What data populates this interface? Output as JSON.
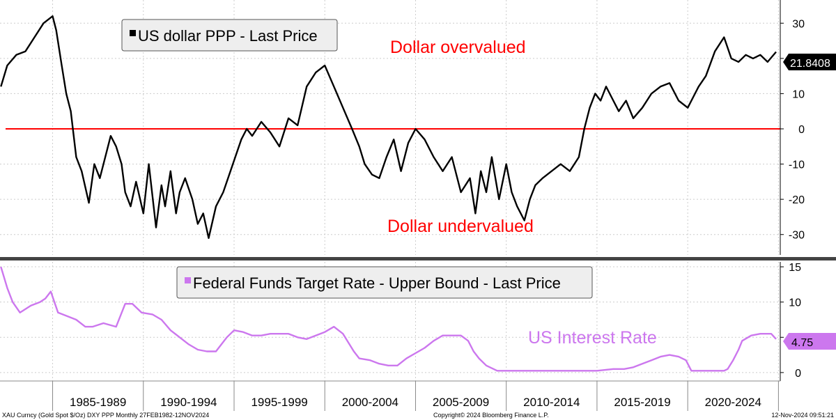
{
  "colors": {
    "ppp_line": "#000000",
    "zero_line": "#ff0000",
    "rate_line": "#cc77ee",
    "annotation_red": "#ff0000",
    "annotation_purple": "#cc77ee",
    "grid": "#cccccc",
    "last_label_bg": "#cc77ee"
  },
  "footer": {
    "left": "XAU Curncy (Gold Spot  $/Oz) DXY PPP  Monthly 27FEB1982-12NOV2024",
    "center": "Copyright© 2024 Bloomberg Finance L.P.",
    "right": "12-Nov-2024 09:51:21"
  },
  "chart_data": [
    {
      "type": "line",
      "panel": "top",
      "title": "US dollar PPP - Last Price",
      "legend": "US dollar PPP - Last Price",
      "annotations": [
        "Dollar overvalued",
        "Dollar undervalued"
      ],
      "last_value_label": "21.8408",
      "ylim": [
        -35,
        35
      ],
      "yticks": [
        30,
        20,
        10,
        0,
        -10,
        -20,
        -30
      ],
      "reference_line": 0,
      "series": [
        {
          "name": "US dollar PPP",
          "x": [
            1982.15,
            1982.5,
            1983.0,
            1983.5,
            1984.0,
            1984.5,
            1985.0,
            1985.2,
            1985.5,
            1985.75,
            1986.0,
            1986.3,
            1986.6,
            1987.0,
            1987.3,
            1987.6,
            1987.9,
            1988.2,
            1988.5,
            1988.8,
            1989.0,
            1989.3,
            1989.6,
            1990.0,
            1990.3,
            1990.7,
            1991.0,
            1991.2,
            1991.5,
            1991.8,
            1992.0,
            1992.3,
            1992.7,
            1993.0,
            1993.3,
            1993.6,
            1994.0,
            1994.4,
            1994.8,
            1995.0,
            1995.2,
            1995.4,
            1995.7,
            1996.0,
            1996.5,
            1997.0,
            1997.5,
            1998.0,
            1998.5,
            1999.0,
            1999.5,
            2000.0,
            2000.5,
            2001.0,
            2001.5,
            2001.9,
            2002.2,
            2002.6,
            2003.0,
            2003.4,
            2003.8,
            2004.2,
            2004.6,
            2005.0,
            2005.5,
            2006.0,
            2006.5,
            2007.0,
            2007.5,
            2008.0,
            2008.3,
            2008.6,
            2008.9,
            2009.2,
            2009.6,
            2010.0,
            2010.3,
            2010.6,
            2011.0,
            2011.3,
            2011.6,
            2012.0,
            2012.5,
            2013.0,
            2013.5,
            2014.0,
            2014.3,
            2014.6,
            2014.9,
            2015.2,
            2015.5,
            2015.8,
            2016.2,
            2016.6,
            2017.0,
            2017.5,
            2018.0,
            2018.5,
            2019.0,
            2019.5,
            2020.0,
            2020.3,
            2020.6,
            2021.0,
            2021.5,
            2022.0,
            2022.4,
            2022.8,
            2023.2,
            2023.6,
            2024.0,
            2024.4,
            2024.87
          ],
          "y": [
            12,
            18,
            21,
            22,
            26,
            30,
            32,
            28,
            18,
            10,
            5,
            -8,
            -12,
            -21,
            -10,
            -14,
            -8,
            -2,
            -5,
            -10,
            -18,
            -22,
            -15,
            -24,
            -10,
            -28,
            -16,
            -22,
            -12,
            -24,
            -18,
            -14,
            -20,
            -27,
            -24,
            -31,
            -22,
            -18,
            -12,
            -9,
            -6,
            -3,
            0,
            -2,
            2,
            -1,
            -5,
            3,
            1,
            12,
            16,
            18,
            12,
            6,
            0,
            -5,
            -10,
            -13,
            -14,
            -8,
            -3,
            -12,
            -4,
            0,
            -3,
            -8,
            -12,
            -8,
            -18,
            -14,
            -24,
            -12,
            -18,
            -8,
            -20,
            -10,
            -18,
            -22,
            -26,
            -20,
            -16,
            -14,
            -12,
            -10,
            -12,
            -8,
            0,
            6,
            10,
            8,
            12,
            9,
            5,
            8,
            3,
            6,
            10,
            12,
            13,
            8,
            6,
            9,
            12,
            15,
            22,
            26,
            20,
            19,
            21,
            20,
            21,
            19,
            21.8408
          ]
        }
      ]
    },
    {
      "type": "line",
      "panel": "bottom",
      "title": "Federal Funds Target Rate - Upper Bound - Last Price",
      "legend": "Federal Funds Target Rate - Upper Bound - Last Price",
      "annotations": [
        "US Interest Rate"
      ],
      "last_value_label": "4.75",
      "ylim": [
        -1,
        15.5
      ],
      "yticks": [
        15,
        10,
        5,
        0
      ],
      "series": [
        {
          "name": "Federal Funds Target Rate",
          "x": [
            1982.15,
            1982.5,
            1982.8,
            1983.2,
            1983.8,
            1984.3,
            1984.6,
            1984.9,
            1985.3,
            1985.8,
            1986.3,
            1986.8,
            1987.2,
            1987.8,
            1988.5,
            1989.0,
            1989.4,
            1989.9,
            1990.5,
            1991.0,
            1991.5,
            1992.0,
            1992.5,
            1993.0,
            1993.5,
            1994.0,
            1994.3,
            1994.6,
            1995.0,
            1995.5,
            1996.0,
            1996.5,
            1997.0,
            1997.5,
            1998.0,
            1998.5,
            1999.0,
            1999.5,
            2000.0,
            2000.5,
            2001.0,
            2001.3,
            2001.6,
            2001.9,
            2002.5,
            2003.0,
            2003.5,
            2004.0,
            2004.5,
            2005.0,
            2005.5,
            2006.0,
            2006.5,
            2007.0,
            2007.5,
            2007.9,
            2008.2,
            2008.5,
            2008.9,
            2009.5,
            2010.0,
            2011.0,
            2012.0,
            2013.0,
            2014.0,
            2015.0,
            2015.9,
            2016.5,
            2017.0,
            2017.5,
            2018.0,
            2018.5,
            2019.0,
            2019.5,
            2019.9,
            2020.2,
            2020.5,
            2021.0,
            2021.5,
            2022.0,
            2022.2,
            2022.5,
            2022.8,
            2023.0,
            2023.5,
            2024.0,
            2024.6,
            2024.87
          ],
          "y": [
            15,
            12,
            10,
            8.5,
            9.5,
            10,
            10.5,
            11.5,
            8.5,
            8,
            7.5,
            6.5,
            6.5,
            7,
            6.5,
            9.75,
            9.75,
            8.5,
            8.25,
            7.5,
            6,
            5,
            4,
            3.25,
            3,
            3,
            4,
            5,
            6,
            5.75,
            5.25,
            5.25,
            5.5,
            5.5,
            5.5,
            5.0,
            4.75,
            5.25,
            5.75,
            6.5,
            5.5,
            4.25,
            3.0,
            2.0,
            1.75,
            1.25,
            1.0,
            1.0,
            2.0,
            2.75,
            3.5,
            4.5,
            5.25,
            5.25,
            5.25,
            4.5,
            3.0,
            2.0,
            1.0,
            0.25,
            0.25,
            0.25,
            0.25,
            0.25,
            0.25,
            0.25,
            0.5,
            0.5,
            0.75,
            1.25,
            1.75,
            2.25,
            2.5,
            2.25,
            1.75,
            0.25,
            0.25,
            0.25,
            0.25,
            0.25,
            0.5,
            1.75,
            3.25,
            4.5,
            5.25,
            5.5,
            5.5,
            4.75
          ]
        }
      ]
    }
  ],
  "x_axis": {
    "range": [
      1982.1,
      2025.1
    ],
    "period_labels": [
      "1985-1989",
      "1990-1994",
      "1995-1999",
      "2000-2004",
      "2005-2009",
      "2010-2014",
      "2015-2019",
      "2020-2024"
    ],
    "period_bounds": [
      1985,
      1990,
      1995,
      2000,
      2005,
      2010,
      2015,
      2020,
      2025
    ]
  }
}
